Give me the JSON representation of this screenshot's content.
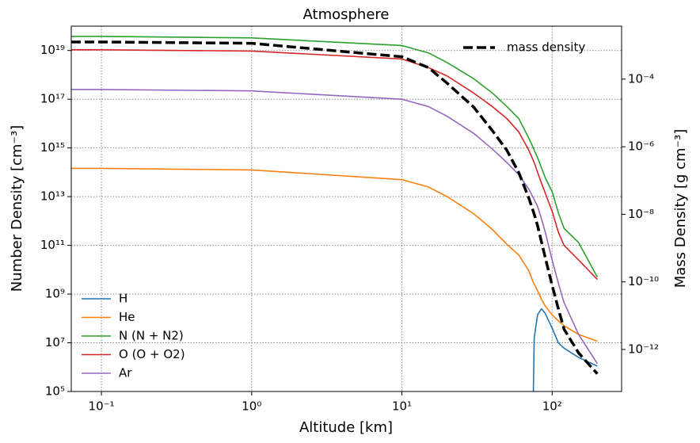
{
  "chart_data": {
    "type": "line",
    "title": "Atmosphere",
    "xlabel": "Altitude [km]",
    "ylabel": "Number Density [cm⁻³]",
    "y2label": "Mass Density [g cm⁻³]",
    "xscale": "log",
    "yscale": "log",
    "y2scale": "log",
    "grid": true,
    "legend": {
      "y": "lower left",
      "y2": "upper right"
    },
    "xlim": [
      0.063,
      290
    ],
    "ylim": [
      100000.0,
      1e+20
    ],
    "y2lim": [
      5.7e-14,
      0.0037
    ],
    "xticks": [
      {
        "value": 0.1,
        "label": "10⁻¹"
      },
      {
        "value": 1,
        "label": "10⁰"
      },
      {
        "value": 10,
        "label": "10¹"
      },
      {
        "value": 100,
        "label": "10²"
      }
    ],
    "yticks": [
      {
        "value": 100000.0,
        "label": "10⁵"
      },
      {
        "value": 10000000.0,
        "label": "10⁷"
      },
      {
        "value": 1000000000.0,
        "label": "10⁹"
      },
      {
        "value": 100000000000.0,
        "label": "10¹¹"
      },
      {
        "value": 10000000000000.0,
        "label": "10¹³"
      },
      {
        "value": 1000000000000000.0,
        "label": "10¹⁵"
      },
      {
        "value": 1e+17,
        "label": "10¹⁷"
      },
      {
        "value": 1e+19,
        "label": "10¹⁹"
      }
    ],
    "y2ticks": [
      {
        "value": 1e-12,
        "label": "10⁻¹²"
      },
      {
        "value": 1e-10,
        "label": "10⁻¹⁰"
      },
      {
        "value": 1e-08,
        "label": "10⁻⁸"
      },
      {
        "value": 1e-06,
        "label": "10⁻⁶"
      },
      {
        "value": 0.0001,
        "label": "10⁻⁴"
      }
    ],
    "x": [
      0.063,
      0.1,
      1,
      10,
      15,
      20,
      30,
      40,
      50,
      60,
      70,
      75,
      76,
      80,
      85,
      90,
      100,
      110,
      120,
      150,
      200
    ],
    "series": [
      {
        "name": "H",
        "color": "#1f77b4",
        "values": [
          null,
          null,
          null,
          null,
          null,
          null,
          null,
          null,
          null,
          null,
          null,
          100000.0,
          16000000.0,
          140000000.0,
          250000000.0,
          160000000.0,
          40000000.0,
          10000000.0,
          6000000.0,
          2500000.0,
          1100000.0
        ]
      },
      {
        "name": "He",
        "color": "#ff7f0e",
        "values": [
          145000000000000.0,
          145000000000000.0,
          125000000000000.0,
          50000000000000.0,
          25000000000000.0,
          10000000000000.0,
          2000000000000.0,
          450000000000.0,
          110000000000.0,
          40000000000.0,
          9000000000.0,
          3000000000.0,
          2500000000.0,
          1400000000.0,
          600000000.0,
          320000000.0,
          140000000.0,
          80000000.0,
          50000000.0,
          22000000.0,
          11500000.0
        ]
      },
      {
        "name": "N (N + N2)",
        "color": "#2ca02c",
        "values": [
          3.8e+19,
          3.8e+19,
          3.3e+19,
          1.6e+19,
          8e+18,
          3.2e+18,
          7e+17,
          1.8e+17,
          5e+16,
          1.6e+16,
          2500000000000000.0,
          1000000000000000.0,
          800000000000000.0,
          400000000000000.0,
          150000000000000.0,
          60000000000000.0,
          16000000000000.0,
          2200000000000.0,
          500000000000.0,
          130000000000.0,
          5000000000.0
        ]
      },
      {
        "name": "O (O + O2)",
        "color": "#d62728",
        "values": [
          1.07e+19,
          1.07e+19,
          9.5e+18,
          4.5e+18,
          2e+18,
          9e+17,
          1.8e+17,
          5e+16,
          1.6e+16,
          4500000000000000.0,
          800000000000000.0,
          300000000000000.0,
          250000000000000.0,
          100000000000000.0,
          35000000000000.0,
          14000000000000.0,
          2500000000000.0,
          350000000000.0,
          100000000000.0,
          25000000000.0,
          4000000000.0
        ]
      },
      {
        "name": "Ar",
        "color": "#9467bd",
        "values": [
          2.5e+17,
          2.5e+17,
          2.2e+17,
          1e+17,
          5e+16,
          2e+16,
          4000000000000000.0,
          900000000000000.0,
          250000000000000.0,
          80000000000000.0,
          20000000000000.0,
          9000000000000.0,
          7500000000000.0,
          4000000000000.0,
          1200000000000.0,
          350000000000.0,
          25000000000.0,
          2800000000.0,
          450000000.0,
          22000000.0,
          1400000.0
        ]
      },
      {
        "name": "mass density",
        "color": "#000000",
        "linestyle": "dashed",
        "axis": "y2",
        "values": [
          0.00126,
          0.00126,
          0.00115,
          0.00046,
          0.00022,
          7.6e-05,
          1.5e-05,
          3e-06,
          7.8e-07,
          1.7e-07,
          3e-08,
          1.2e-08,
          1e-08,
          4.6e-09,
          1.5e-09,
          5.2e-10,
          7.9e-11,
          1.6e-11,
          4e-12,
          7.9e-13,
          1.9e-13
        ]
      }
    ]
  }
}
